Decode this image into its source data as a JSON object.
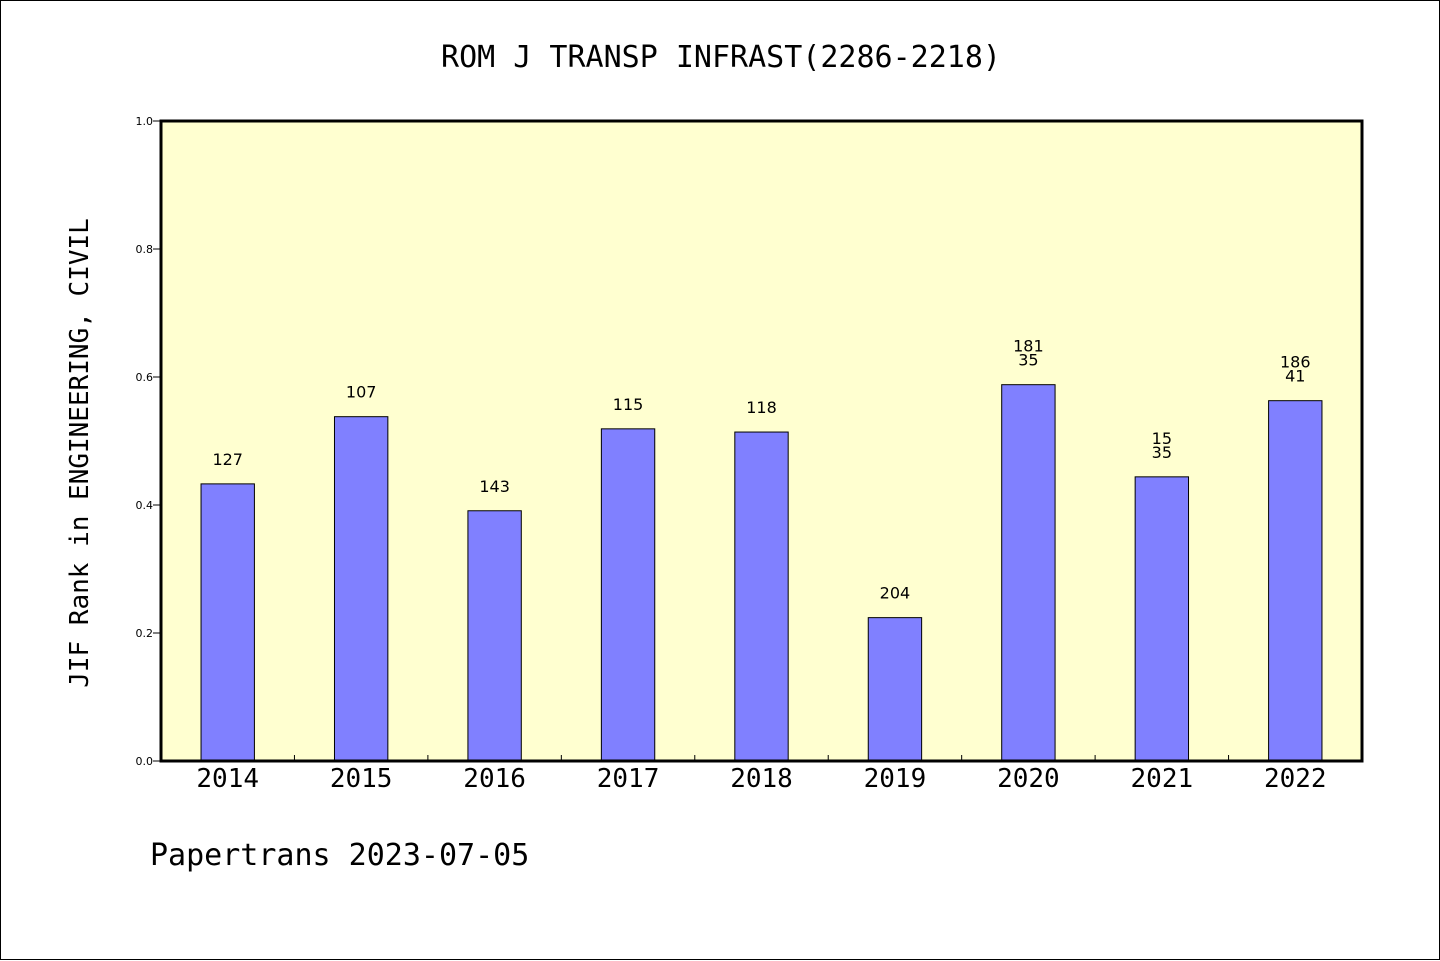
{
  "footer": {
    "text": "Papertrans 2023-07-05"
  },
  "colors": {
    "plot_background": "#ffffd0",
    "bar_fill": "#8080ff",
    "bar_stroke": "#000000",
    "axis": "#000000"
  },
  "chart_data": {
    "type": "bar",
    "title": "ROM J TRANSP INFRAST(2286-2218)",
    "ylabel": "JIF Rank in ENGINEERING, CIVIL",
    "xlabel": "",
    "ylim": [
      0,
      1.0
    ],
    "yticks": [
      "0.0",
      "0.2",
      "0.4",
      "0.6",
      "0.8",
      "1.0"
    ],
    "categories": [
      "2014",
      "2015",
      "2016",
      "2017",
      "2018",
      "2019",
      "2020",
      "2021",
      "2022"
    ],
    "values": [
      0.433,
      0.538,
      0.391,
      0.519,
      0.514,
      0.224,
      0.588,
      0.444,
      0.563
    ],
    "bar_labels": [
      [
        "127"
      ],
      [
        "107"
      ],
      [
        "143"
      ],
      [
        "115"
      ],
      [
        "118"
      ],
      [
        "204"
      ],
      [
        "181",
        "35"
      ],
      [
        "15",
        "35"
      ],
      [
        "186",
        "41"
      ]
    ],
    "grid": false,
    "legend": "none"
  }
}
